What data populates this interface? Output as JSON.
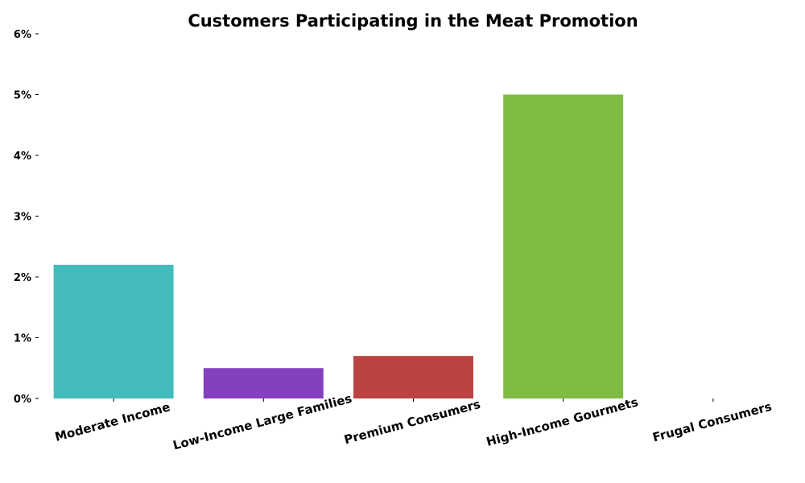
{
  "chart_data": {
    "type": "bar",
    "title": "Customers Participating in the Meat Promotion",
    "xlabel": "",
    "ylabel": "",
    "categories": [
      "Moderate Income",
      "Low-Income Large Families",
      "Premium Consumers",
      "High-Income Gourmets",
      "Frugal Consumers"
    ],
    "values": [
      2.2,
      0.5,
      0.7,
      5.0,
      0.0
    ],
    "colors": [
      "#43bbbc",
      "#8441be",
      "#bb4443",
      "#7fbc43",
      "#43bbbc"
    ],
    "ylim": [
      0,
      6
    ],
    "yticks": [
      0,
      1,
      2,
      3,
      4,
      5,
      6
    ],
    "ytick_labels": [
      "0%",
      "1%",
      "2%",
      "3%",
      "4%",
      "5%",
      "6%"
    ],
    "grid": false,
    "legend": "none"
  }
}
